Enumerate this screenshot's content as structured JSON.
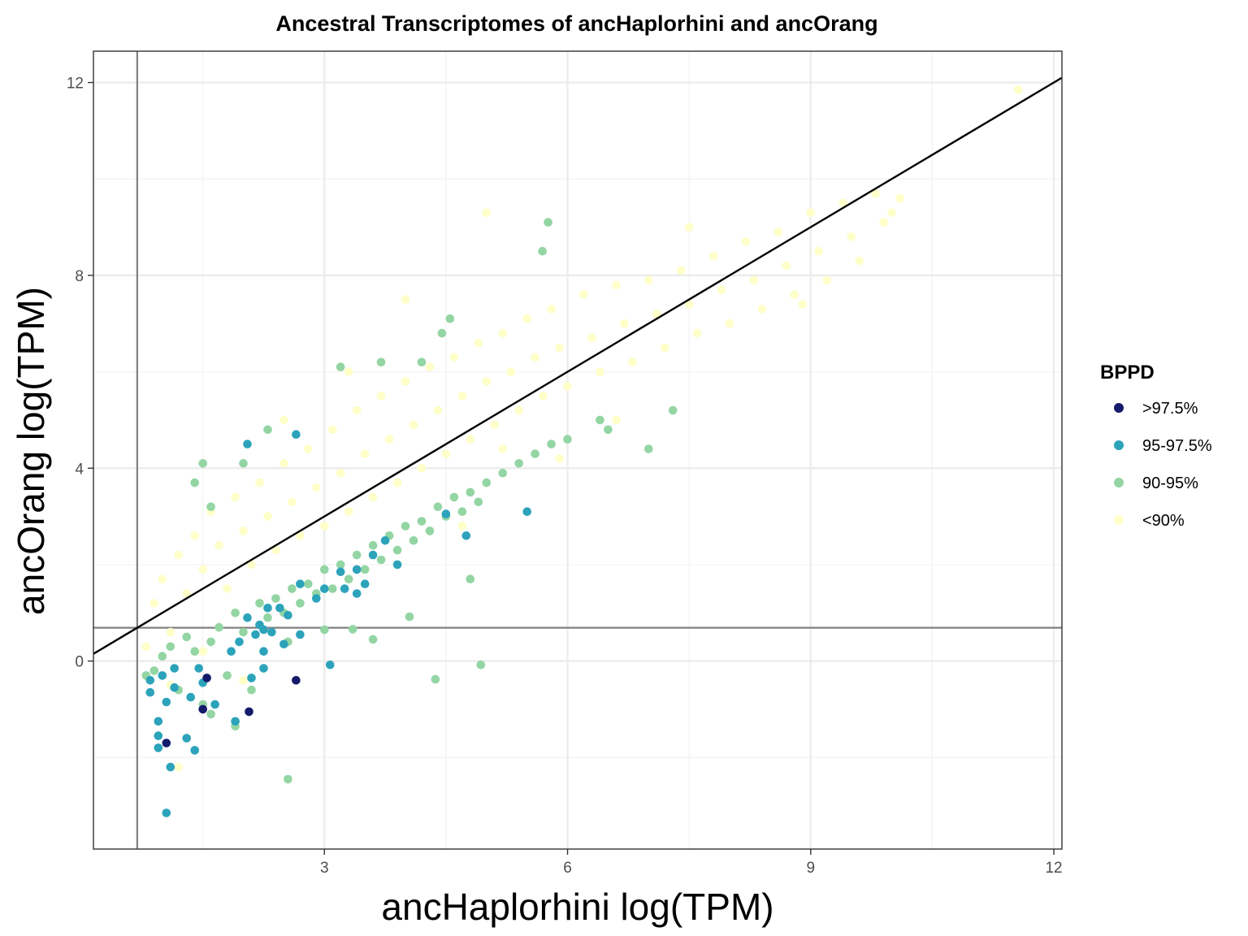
{
  "chart_data": {
    "type": "scatter",
    "title": "Ancestral Transcriptomes of ancHaplorhini and ancOrang",
    "xlabel": "ancHaplorhini log(TPM)",
    "ylabel": "ancOrang log(TPM)",
    "xlim": [
      0.15,
      12.1
    ],
    "ylim": [
      -3.9,
      12.65
    ],
    "xticks": [
      3,
      6,
      9,
      12
    ],
    "xtick_labels": [
      "3",
      "6",
      "9",
      "12"
    ],
    "yticks": [
      0,
      4,
      8,
      12
    ],
    "ytick_labels": [
      "0",
      "4",
      "8",
      "12"
    ],
    "grid": true,
    "identity_line": {
      "slope": 1,
      "intercept": 0
    },
    "reference_lines": {
      "vline_x": 0.69,
      "hline_y": 0.69
    },
    "legend": {
      "title": "BPPD",
      "position": "right",
      "entries": [
        {
          "label": ">97.5%",
          "color": "#141b6b"
        },
        {
          "label": "95-97.5%",
          "color": "#2ca3bb"
        },
        {
          "label": "90-95%",
          "color": "#93d5a3"
        },
        {
          "label": "<90%",
          "color": "#feffc9"
        }
      ]
    },
    "series": [
      {
        "name": "<90%",
        "color": "#feffc9",
        "points": [
          [
            0.8,
            0.3
          ],
          [
            0.9,
            1.2
          ],
          [
            1.0,
            1.7
          ],
          [
            1.1,
            0.6
          ],
          [
            1.2,
            2.2
          ],
          [
            1.3,
            1.4
          ],
          [
            1.4,
            2.6
          ],
          [
            1.5,
            1.9
          ],
          [
            1.6,
            3.1
          ],
          [
            1.7,
            2.4
          ],
          [
            1.8,
            1.5
          ],
          [
            1.9,
            3.4
          ],
          [
            2.0,
            2.7
          ],
          [
            2.1,
            2.0
          ],
          [
            2.2,
            3.7
          ],
          [
            2.3,
            3.0
          ],
          [
            2.4,
            2.3
          ],
          [
            2.5,
            4.1
          ],
          [
            2.6,
            3.3
          ],
          [
            2.7,
            2.6
          ],
          [
            2.8,
            4.4
          ],
          [
            2.9,
            3.6
          ],
          [
            3.0,
            2.8
          ],
          [
            3.1,
            4.8
          ],
          [
            3.2,
            3.9
          ],
          [
            3.3,
            3.1
          ],
          [
            3.4,
            5.2
          ],
          [
            3.5,
            4.3
          ],
          [
            3.6,
            3.4
          ],
          [
            3.7,
            5.5
          ],
          [
            3.8,
            4.6
          ],
          [
            3.9,
            3.7
          ],
          [
            4.0,
            5.8
          ],
          [
            4.1,
            4.9
          ],
          [
            4.2,
            4.0
          ],
          [
            4.3,
            6.1
          ],
          [
            4.4,
            5.2
          ],
          [
            4.5,
            4.3
          ],
          [
            4.6,
            6.3
          ],
          [
            4.7,
            5.5
          ],
          [
            4.8,
            4.6
          ],
          [
            4.9,
            6.6
          ],
          [
            5.0,
            5.8
          ],
          [
            5.1,
            4.9
          ],
          [
            5.2,
            6.8
          ],
          [
            5.3,
            6.0
          ],
          [
            5.4,
            5.2
          ],
          [
            5.5,
            7.1
          ],
          [
            5.6,
            6.3
          ],
          [
            5.7,
            5.5
          ],
          [
            5.8,
            7.3
          ],
          [
            5.9,
            6.5
          ],
          [
            6.0,
            5.7
          ],
          [
            6.2,
            7.6
          ],
          [
            6.3,
            6.7
          ],
          [
            6.4,
            6.0
          ],
          [
            6.6,
            7.8
          ],
          [
            6.7,
            7.0
          ],
          [
            6.8,
            6.2
          ],
          [
            7.0,
            7.9
          ],
          [
            7.1,
            7.2
          ],
          [
            7.2,
            6.5
          ],
          [
            7.4,
            8.1
          ],
          [
            7.5,
            7.4
          ],
          [
            7.6,
            6.8
          ],
          [
            7.8,
            8.4
          ],
          [
            7.9,
            7.7
          ],
          [
            8.0,
            7.0
          ],
          [
            8.2,
            8.7
          ],
          [
            8.3,
            7.9
          ],
          [
            8.4,
            7.3
          ],
          [
            8.6,
            8.9
          ],
          [
            8.7,
            8.2
          ],
          [
            8.8,
            7.6
          ],
          [
            9.0,
            9.3
          ],
          [
            9.1,
            8.5
          ],
          [
            9.2,
            7.9
          ],
          [
            9.4,
            9.5
          ],
          [
            9.5,
            8.8
          ],
          [
            9.6,
            8.3
          ],
          [
            9.8,
            9.7
          ],
          [
            9.9,
            9.1
          ],
          [
            10.1,
            9.6
          ],
          [
            10.0,
            9.3
          ],
          [
            5.0,
            9.3
          ],
          [
            4.0,
            7.5
          ],
          [
            3.3,
            6.0
          ],
          [
            2.5,
            5.0
          ],
          [
            7.5,
            9.0
          ],
          [
            8.9,
            7.4
          ],
          [
            6.6,
            5.0
          ],
          [
            5.9,
            4.2
          ],
          [
            4.7,
            2.8
          ],
          [
            3.9,
            2.0
          ],
          [
            1.5,
            0.2
          ],
          [
            1.1,
            -0.5
          ],
          [
            1.2,
            -2.2
          ],
          [
            2.0,
            -0.4
          ],
          [
            11.56,
            11.85
          ],
          [
            5.2,
            4.4
          ]
        ]
      },
      {
        "name": "90-95%",
        "color": "#93d5a3",
        "points": [
          [
            0.8,
            -0.3
          ],
          [
            0.9,
            -0.2
          ],
          [
            1.0,
            0.1
          ],
          [
            1.1,
            0.3
          ],
          [
            1.2,
            -0.6
          ],
          [
            1.3,
            0.5
          ],
          [
            1.4,
            0.2
          ],
          [
            1.5,
            -0.9
          ],
          [
            1.6,
            0.4
          ],
          [
            1.7,
            0.7
          ],
          [
            1.8,
            -0.3
          ],
          [
            1.9,
            1.0
          ],
          [
            2.0,
            0.6
          ],
          [
            2.1,
            -0.6
          ],
          [
            2.2,
            1.2
          ],
          [
            2.3,
            0.9
          ],
          [
            2.4,
            1.3
          ],
          [
            2.5,
            1.0
          ],
          [
            2.6,
            1.5
          ],
          [
            2.7,
            1.2
          ],
          [
            2.8,
            1.6
          ],
          [
            2.9,
            1.4
          ],
          [
            3.0,
            1.9
          ],
          [
            3.1,
            1.5
          ],
          [
            3.2,
            2.0
          ],
          [
            3.3,
            1.7
          ],
          [
            3.4,
            2.2
          ],
          [
            3.5,
            1.9
          ],
          [
            3.6,
            2.4
          ],
          [
            3.7,
            2.1
          ],
          [
            3.8,
            2.6
          ],
          [
            3.9,
            2.3
          ],
          [
            4.0,
            2.8
          ],
          [
            4.1,
            2.5
          ],
          [
            4.2,
            2.9
          ],
          [
            4.3,
            2.7
          ],
          [
            4.4,
            3.2
          ],
          [
            4.5,
            3.0
          ],
          [
            4.6,
            3.4
          ],
          [
            4.7,
            3.1
          ],
          [
            4.8,
            3.5
          ],
          [
            4.9,
            3.3
          ],
          [
            5.0,
            3.7
          ],
          [
            5.2,
            3.9
          ],
          [
            5.4,
            4.1
          ],
          [
            5.6,
            4.3
          ],
          [
            5.8,
            4.5
          ],
          [
            6.0,
            4.6
          ],
          [
            6.5,
            4.8
          ],
          [
            7.0,
            4.4
          ],
          [
            7.3,
            5.2
          ],
          [
            6.4,
            5.0
          ],
          [
            5.76,
            9.1
          ],
          [
            5.69,
            8.5
          ],
          [
            4.55,
            7.1
          ],
          [
            4.45,
            6.8
          ],
          [
            4.2,
            6.2
          ],
          [
            3.7,
            6.2
          ],
          [
            3.2,
            6.1
          ],
          [
            2.3,
            4.8
          ],
          [
            2.0,
            4.1
          ],
          [
            1.5,
            4.1
          ],
          [
            1.4,
            3.7
          ],
          [
            1.6,
            3.2
          ],
          [
            2.55,
            -2.45
          ],
          [
            4.37,
            -0.38
          ],
          [
            4.93,
            -0.08
          ],
          [
            4.05,
            0.92
          ],
          [
            3.35,
            0.66
          ],
          [
            1.9,
            -1.35
          ],
          [
            1.6,
            -1.1
          ],
          [
            2.55,
            0.4
          ],
          [
            3.0,
            0.65
          ],
          [
            3.6,
            0.45
          ],
          [
            4.8,
            1.7
          ]
        ]
      },
      {
        "name": "95-97.5%",
        "color": "#2ca3bb",
        "points": [
          [
            0.85,
            -0.4
          ],
          [
            0.85,
            -0.65
          ],
          [
            0.95,
            -1.25
          ],
          [
            0.95,
            -1.55
          ],
          [
            0.95,
            -1.8
          ],
          [
            1.0,
            -0.3
          ],
          [
            1.05,
            -0.85
          ],
          [
            1.05,
            -3.15
          ],
          [
            1.1,
            -2.2
          ],
          [
            1.15,
            -0.15
          ],
          [
            1.15,
            -0.55
          ],
          [
            1.3,
            -1.6
          ],
          [
            1.35,
            -0.75
          ],
          [
            1.4,
            -1.85
          ],
          [
            1.45,
            -0.15
          ],
          [
            1.5,
            -0.45
          ],
          [
            1.65,
            -0.9
          ],
          [
            1.85,
            0.2
          ],
          [
            1.95,
            0.4
          ],
          [
            1.9,
            -1.25
          ],
          [
            2.05,
            0.9
          ],
          [
            2.1,
            -0.35
          ],
          [
            2.15,
            0.55
          ],
          [
            2.2,
            0.75
          ],
          [
            2.25,
            -0.15
          ],
          [
            2.25,
            0.2
          ],
          [
            2.3,
            1.1
          ],
          [
            2.35,
            0.6
          ],
          [
            2.45,
            1.1
          ],
          [
            2.5,
            0.35
          ],
          [
            2.55,
            0.95
          ],
          [
            2.7,
            1.6
          ],
          [
            2.9,
            1.3
          ],
          [
            3.0,
            1.5
          ],
          [
            3.07,
            -0.08
          ],
          [
            3.25,
            1.5
          ],
          [
            3.5,
            1.6
          ],
          [
            3.4,
            1.9
          ],
          [
            3.6,
            2.2
          ],
          [
            3.75,
            2.5
          ],
          [
            4.5,
            3.05
          ],
          [
            4.75,
            2.6
          ],
          [
            5.5,
            3.1
          ],
          [
            2.05,
            4.5
          ],
          [
            2.65,
            4.7
          ],
          [
            3.9,
            2.0
          ],
          [
            3.4,
            1.4
          ],
          [
            3.2,
            1.85
          ],
          [
            2.7,
            0.55
          ],
          [
            2.25,
            0.65
          ]
        ]
      },
      {
        "name": ">97.5%",
        "color": "#141b6b",
        "points": [
          [
            1.05,
            -1.7
          ],
          [
            1.5,
            -1.0
          ],
          [
            1.55,
            -0.35
          ],
          [
            2.07,
            -1.05
          ],
          [
            2.65,
            -0.4
          ]
        ]
      }
    ]
  }
}
